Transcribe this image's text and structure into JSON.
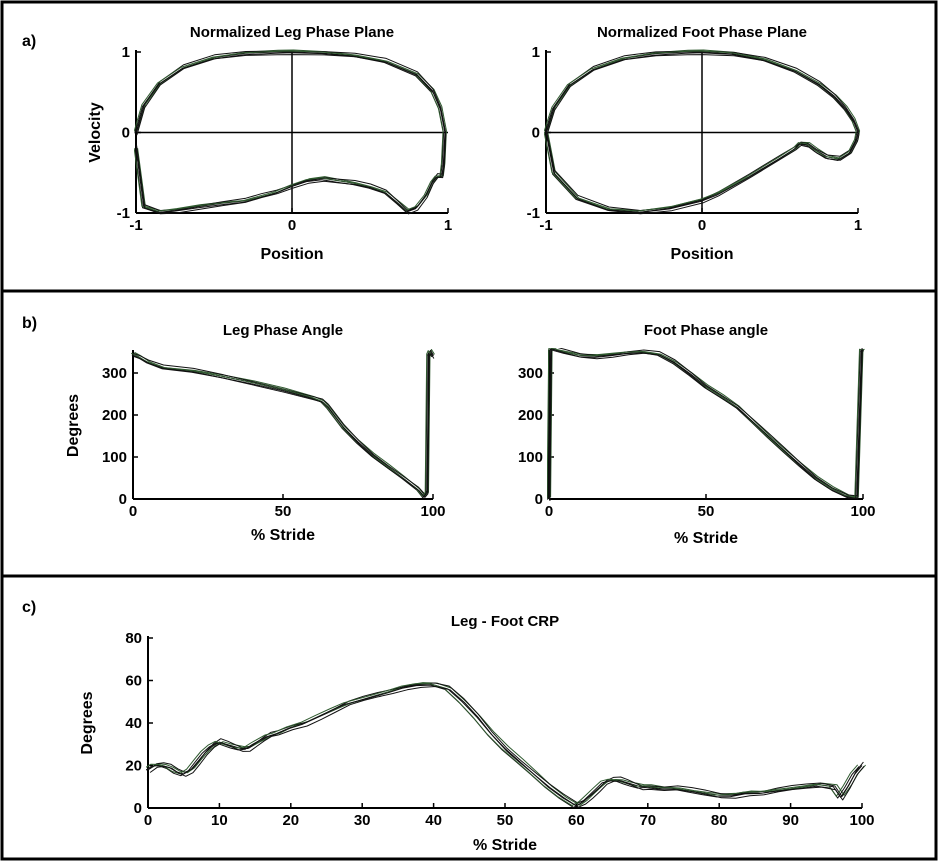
{
  "colors": {
    "axis": "#000000",
    "trace": "#111111",
    "trace_alt": "#2f5a2f",
    "frame": "#000000",
    "background": "#ffffff"
  },
  "panels": [
    {
      "label": "a)"
    },
    {
      "label": "b)"
    },
    {
      "label": "c)"
    }
  ],
  "chart_data": [
    {
      "type": "line",
      "panel": "a)",
      "title": "Normalized Leg Phase Plane",
      "xlabel": "Position",
      "ylabel": "Velocity",
      "xlim": [
        -1,
        1
      ],
      "ylim": [
        -1,
        1
      ],
      "xticks": [
        -1,
        0,
        1
      ],
      "yticks": [
        -1,
        0,
        1
      ],
      "zero_lines": true,
      "grid": false,
      "x": [
        -1.0,
        -0.95,
        -0.85,
        -0.7,
        -0.5,
        -0.3,
        -0.1,
        0.0,
        0.2,
        0.4,
        0.6,
        0.8,
        0.9,
        0.95,
        0.98,
        0.97,
        0.96,
        0.93,
        0.9,
        0.86,
        0.8,
        0.74,
        0.68,
        0.6,
        0.5,
        0.4,
        0.3,
        0.2,
        0.1,
        0.0,
        -0.1,
        -0.2,
        -0.3,
        -0.45,
        -0.6,
        -0.75,
        -0.85,
        -0.95,
        -1.0
      ],
      "y": [
        0.0,
        0.33,
        0.6,
        0.8,
        0.93,
        0.985,
        1.0,
        1.0,
        0.985,
        0.95,
        0.88,
        0.72,
        0.52,
        0.3,
        0.0,
        -0.4,
        -0.55,
        -0.55,
        -0.62,
        -0.78,
        -0.93,
        -0.98,
        -0.88,
        -0.75,
        -0.68,
        -0.63,
        -0.6,
        -0.57,
        -0.6,
        -0.67,
        -0.75,
        -0.8,
        -0.85,
        -0.88,
        -0.92,
        -0.97,
        -0.99,
        -0.93,
        -0.2
      ]
    },
    {
      "type": "line",
      "panel": "a)",
      "title": "Normalized Foot Phase Plane",
      "xlabel": "Position",
      "ylabel": "",
      "xlim": [
        -1,
        1
      ],
      "ylim": [
        -1,
        1
      ],
      "xticks": [
        -1,
        0,
        1
      ],
      "yticks": [
        -1,
        0,
        1
      ],
      "zero_lines": true,
      "grid": false,
      "x": [
        -1.0,
        -0.95,
        -0.85,
        -0.7,
        -0.5,
        -0.3,
        -0.1,
        0.0,
        0.2,
        0.4,
        0.6,
        0.75,
        0.85,
        0.92,
        0.97,
        1.0,
        0.99,
        0.95,
        0.88,
        0.8,
        0.73,
        0.68,
        0.63,
        0.6,
        0.5,
        0.3,
        0.1,
        0.0,
        -0.2,
        -0.4,
        -0.6,
        -0.8,
        -0.95,
        -1.0
      ],
      "y": [
        0.0,
        0.3,
        0.58,
        0.78,
        0.92,
        0.98,
        1.0,
        1.0,
        0.975,
        0.9,
        0.76,
        0.6,
        0.45,
        0.3,
        0.15,
        0.0,
        -0.1,
        -0.25,
        -0.33,
        -0.3,
        -0.22,
        -0.15,
        -0.14,
        -0.2,
        -0.32,
        -0.55,
        -0.76,
        -0.84,
        -0.94,
        -0.99,
        -0.96,
        -0.82,
        -0.5,
        0.0
      ]
    },
    {
      "type": "line",
      "panel": "b)",
      "title": "Leg Phase Angle",
      "xlabel": "% Stride",
      "ylabel": "Degrees",
      "xlim": [
        0,
        100
      ],
      "ylim": [
        0,
        350
      ],
      "xticks": [
        0,
        50,
        100
      ],
      "yticks": [
        0,
        100,
        200,
        300
      ],
      "grid": false,
      "x": [
        0,
        2,
        5,
        10,
        20,
        30,
        40,
        50,
        60,
        63,
        65,
        70,
        75,
        80,
        85,
        90,
        95,
        97,
        98,
        98.5,
        99,
        100
      ],
      "y": [
        345,
        338,
        325,
        312,
        305,
        292,
        277,
        260,
        240,
        232,
        218,
        172,
        136,
        104,
        77,
        50,
        22,
        5,
        15,
        345,
        352,
        340
      ]
    },
    {
      "type": "line",
      "panel": "b)",
      "title": "Foot Phase angle",
      "xlabel": "% Stride",
      "ylabel": "",
      "xlim": [
        0,
        100
      ],
      "ylim": [
        0,
        350
      ],
      "xticks": [
        0,
        50,
        100
      ],
      "yticks": [
        0,
        100,
        200,
        300
      ],
      "grid": false,
      "x": [
        0,
        0.5,
        1,
        2,
        5,
        10,
        15,
        20,
        25,
        30,
        35,
        40,
        45,
        50,
        55,
        60,
        65,
        70,
        75,
        80,
        85,
        90,
        95,
        98,
        99.5,
        100
      ],
      "y": [
        0,
        355,
        358,
        355,
        350,
        342,
        340,
        343,
        347,
        349,
        344,
        325,
        298,
        268,
        244,
        218,
        183,
        148,
        115,
        82,
        50,
        25,
        6,
        2,
        355,
        355
      ]
    },
    {
      "type": "line",
      "panel": "c)",
      "title": "Leg - Foot CRP",
      "xlabel": "% Stride",
      "ylabel": "Degrees",
      "xlim": [
        0,
        100
      ],
      "ylim": [
        0,
        80
      ],
      "xticks": [
        0,
        10,
        20,
        30,
        40,
        50,
        60,
        70,
        80,
        90,
        100
      ],
      "yticks": [
        0,
        20,
        40,
        60,
        80
      ],
      "grid": false,
      "x": [
        0,
        1,
        2,
        3,
        4,
        5,
        6,
        7,
        8,
        9,
        10,
        11,
        12,
        13,
        14,
        15,
        16,
        17,
        18,
        20,
        22,
        24,
        26,
        28,
        30,
        32,
        34,
        36,
        38,
        40,
        42,
        44,
        46,
        48,
        50,
        52,
        54,
        56,
        58,
        60,
        61,
        62,
        63,
        64,
        65,
        66,
        67,
        68,
        69,
        70,
        72,
        74,
        76,
        78,
        80,
        82,
        84,
        86,
        88,
        90,
        92,
        94,
        96,
        97,
        98,
        99,
        100
      ],
      "y": [
        18,
        20,
        20,
        19,
        17,
        16,
        18,
        22,
        26,
        29,
        31,
        30,
        29,
        28,
        28,
        30,
        32,
        34,
        35,
        38,
        40,
        43,
        46,
        49,
        51,
        53,
        55,
        57,
        58,
        58,
        56,
        50,
        43,
        35,
        28,
        22,
        16,
        10,
        5,
        1,
        3,
        6,
        9,
        12,
        13,
        13,
        12,
        11,
        10,
        10,
        9,
        9,
        8,
        7,
        6,
        6,
        7,
        7,
        8,
        9,
        10,
        11,
        10,
        5,
        10,
        16,
        20
      ]
    }
  ]
}
